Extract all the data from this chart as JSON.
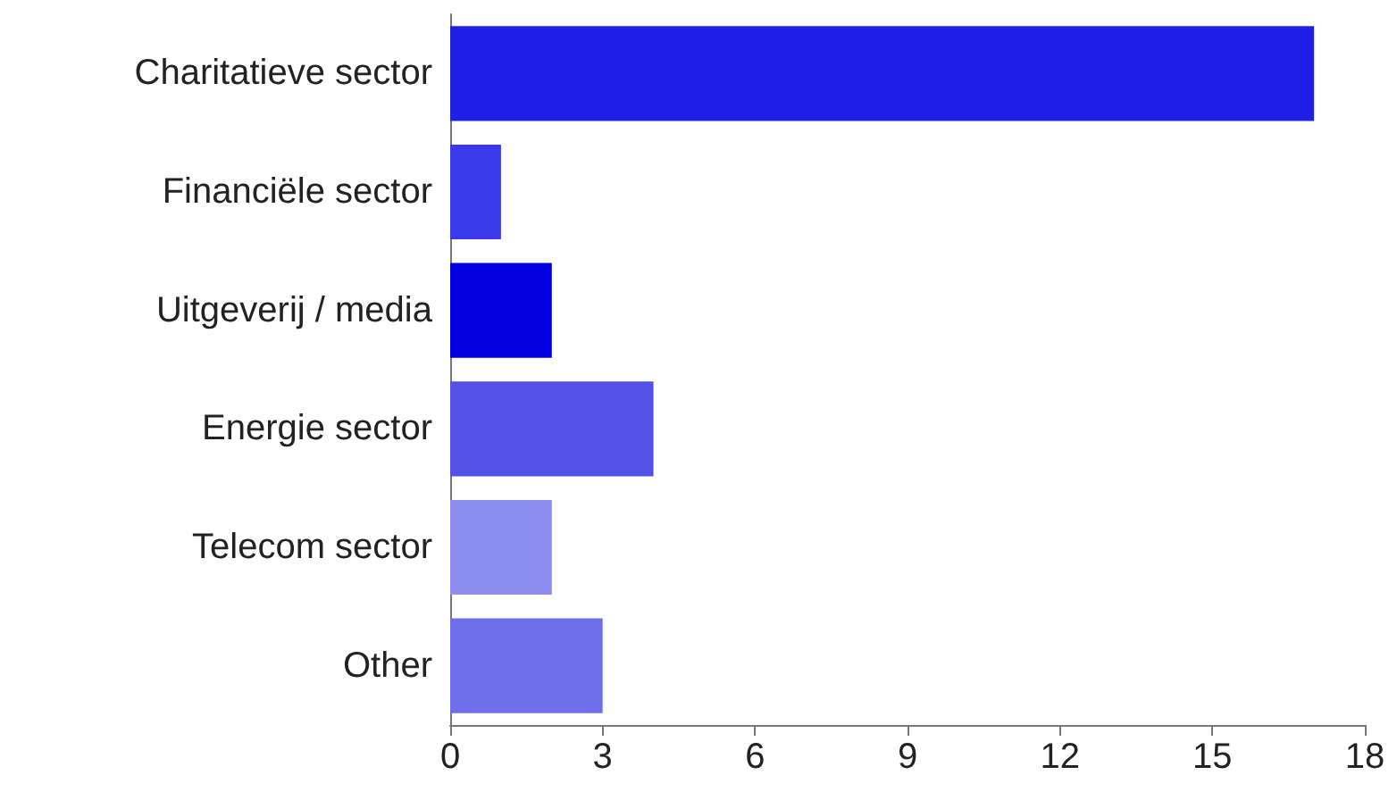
{
  "chart_data": {
    "type": "bar",
    "orientation": "horizontal",
    "categories": [
      "Charitatieve sector",
      "Financiële sector",
      "Uitgeverij / media",
      "Energie sector",
      "Telecom sector",
      "Other"
    ],
    "values": [
      17,
      1,
      2,
      4,
      2,
      3
    ],
    "colors": [
      "#1f1fe6",
      "#3a3ae8",
      "#0000e0",
      "#5252e8",
      "#8e8ef0",
      "#6f6fec"
    ],
    "xlim": [
      0,
      18
    ],
    "xticks": [
      0,
      3,
      6,
      9,
      12,
      15,
      18
    ],
    "grid": false
  }
}
